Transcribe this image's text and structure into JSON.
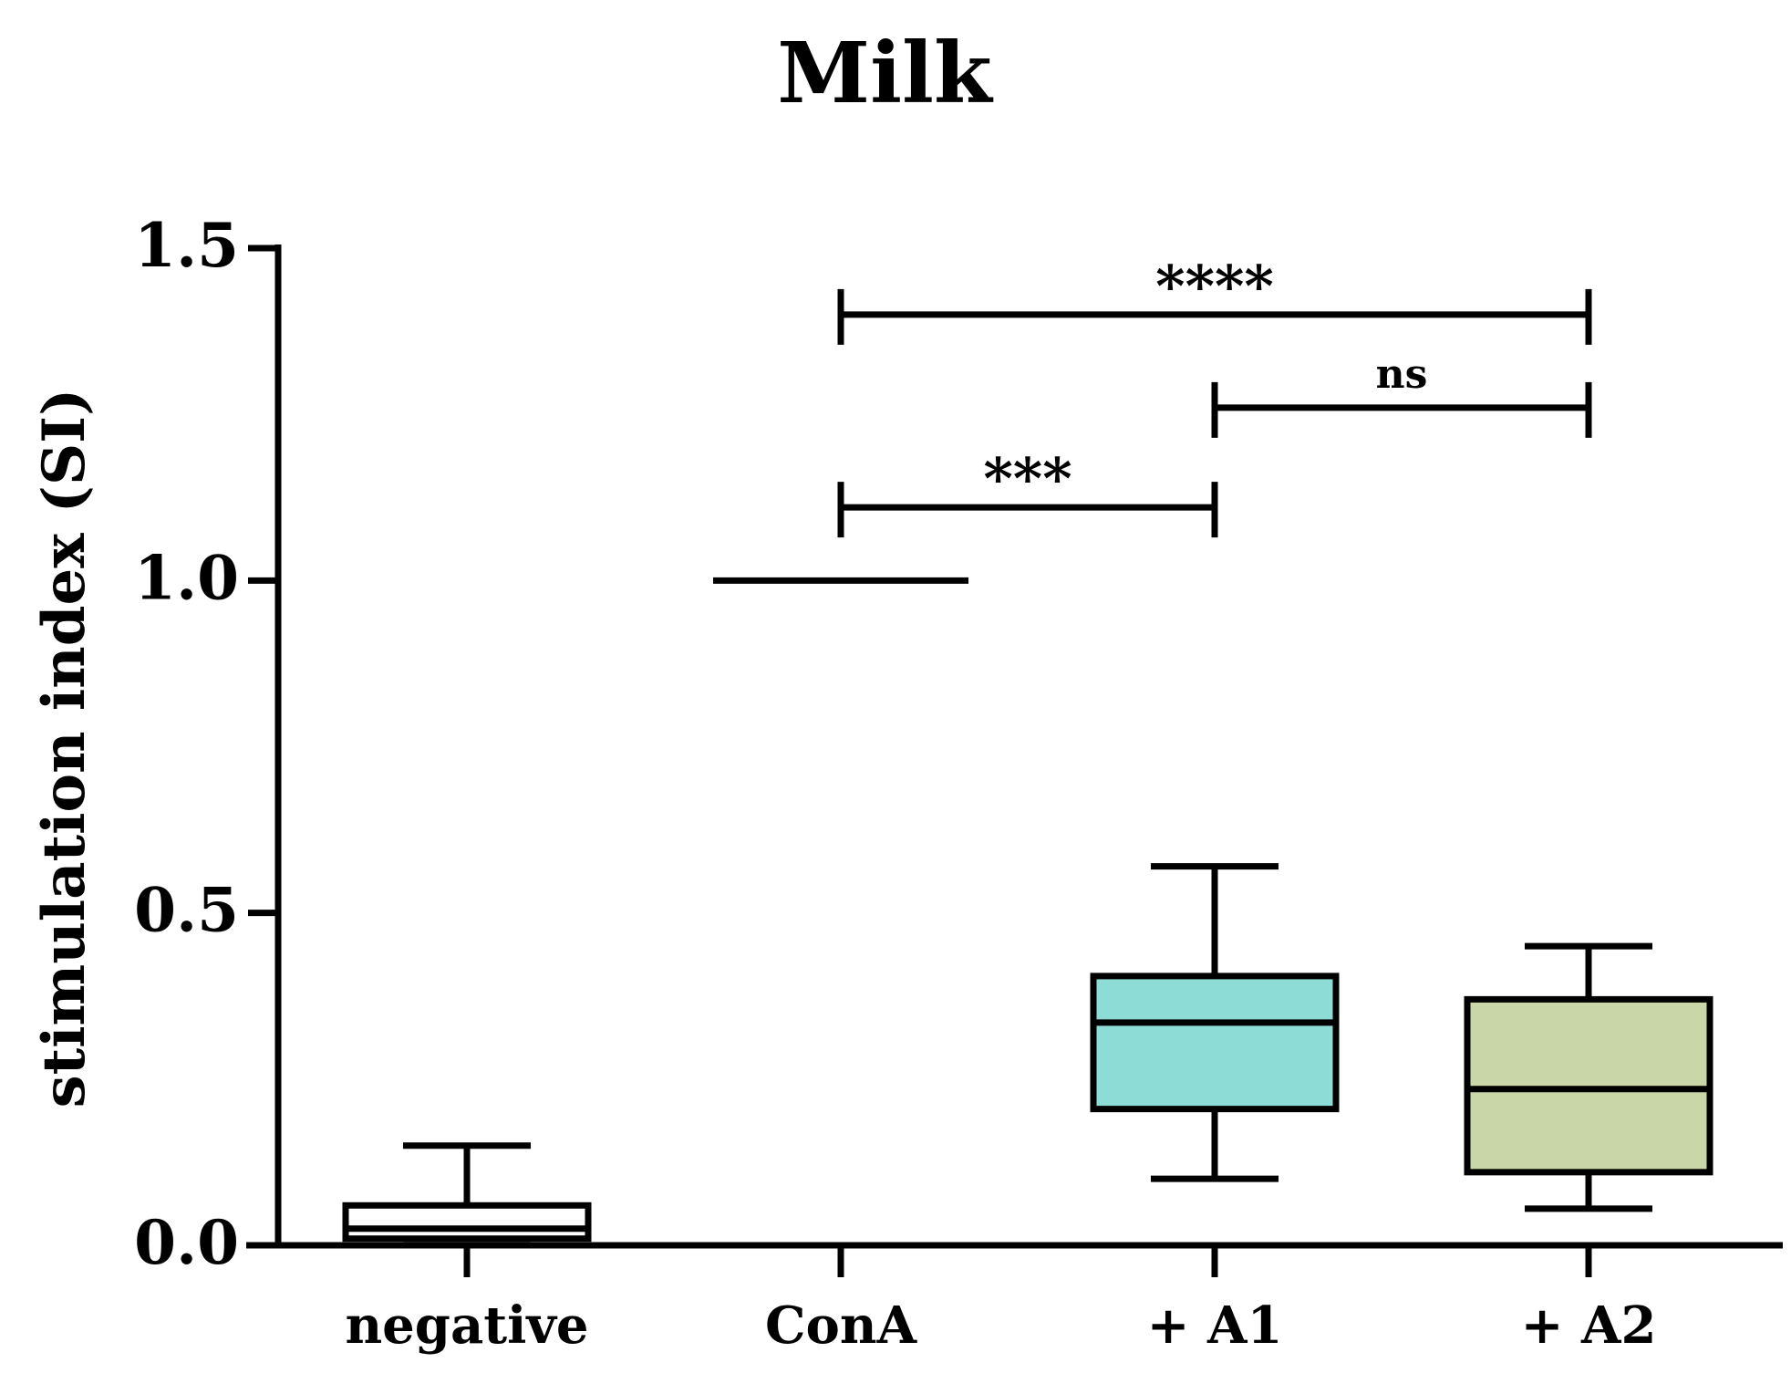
{
  "chart_data": {
    "type": "box",
    "title": "Milk",
    "xlabel": "",
    "ylabel": "stimulation index (SI)",
    "ylim": [
      0,
      1.5
    ],
    "yticks": [
      "0.0",
      "0.5",
      "1.0",
      "1.5"
    ],
    "categories": [
      "negative",
      "ConA",
      "+ A1",
      "+ A2"
    ],
    "boxes": [
      {
        "category": "negative",
        "min": 0.01,
        "q1": 0.01,
        "median": 0.025,
        "q3": 0.06,
        "max": 0.15,
        "fill": "#ffffff"
      },
      {
        "category": "ConA",
        "min": 1.0,
        "q1": 1.0,
        "median": 1.0,
        "q3": 1.0,
        "max": 1.0,
        "fill": "#ffffff"
      },
      {
        "category": "+ A1",
        "min": 0.1,
        "q1": 0.205,
        "median": 0.335,
        "q3": 0.405,
        "max": 0.57,
        "fill": "#8edcd6"
      },
      {
        "category": "+ A2",
        "min": 0.055,
        "q1": 0.11,
        "median": 0.235,
        "q3": 0.37,
        "max": 0.45,
        "fill": "#c9d6a8"
      }
    ],
    "significance": [
      {
        "from": "ConA",
        "to": "+ A1",
        "y": 1.11,
        "label": "***"
      },
      {
        "from": "+ A1",
        "to": "+ A2",
        "y": 1.26,
        "label": "ns"
      },
      {
        "from": "ConA",
        "to": "+ A2",
        "y": 1.4,
        "label": "****"
      }
    ]
  }
}
